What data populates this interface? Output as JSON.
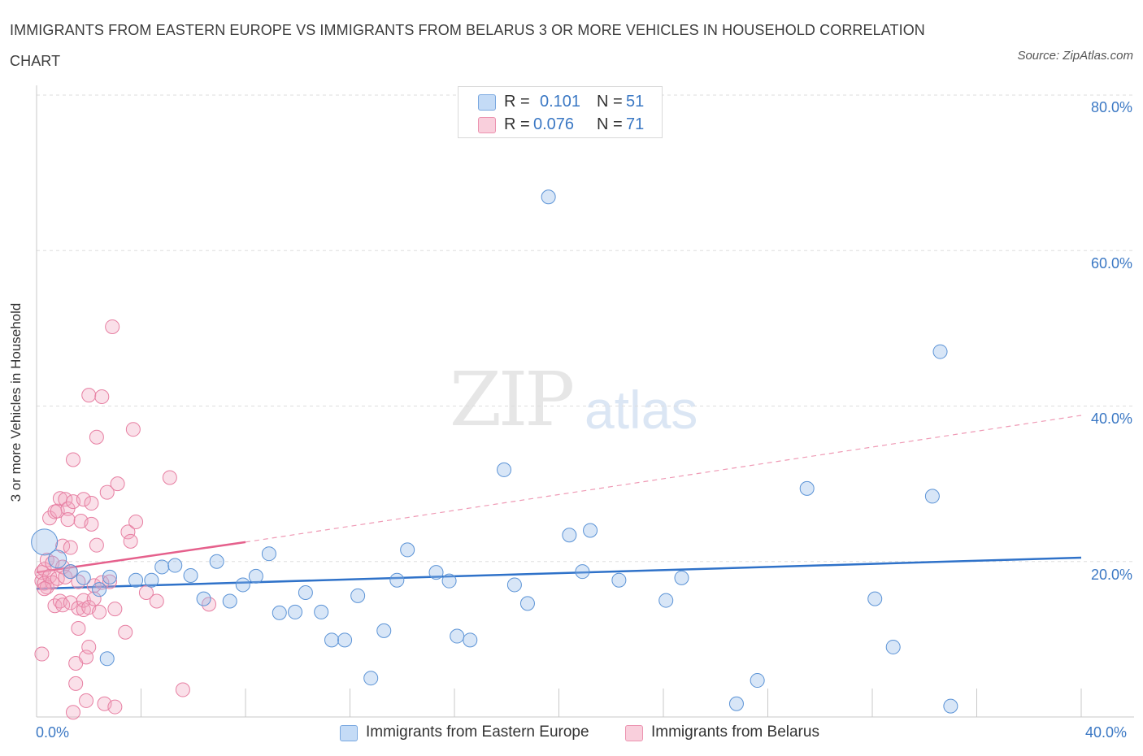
{
  "title": "IMMIGRANTS FROM EASTERN EUROPE VS IMMIGRANTS FROM BELARUS 3 OR MORE VEHICLES IN HOUSEHOLD CORRELATION CHART",
  "source": "Source: ZipAtlas.com",
  "watermark": {
    "zip": "ZIP",
    "atlas": "atlas"
  },
  "legend": {
    "rows": [
      {
        "r_label": "R =",
        "r_value": "0.101",
        "n_label": "N =",
        "n_value": "51",
        "color": "#8fb8e8"
      },
      {
        "r_label": "R =",
        "r_value": "0.076",
        "n_label": "N =",
        "n_value": "71",
        "color": "#f2a7bf"
      }
    ]
  },
  "bottom_legend": [
    {
      "label": "Immigrants from Eastern Europe",
      "color": "#8fb8e8"
    },
    {
      "label": "Immigrants from Belarus",
      "color": "#f2a7bf"
    }
  ],
  "chart_data": {
    "type": "scatter",
    "title": "IMMIGRANTS FROM EASTERN EUROPE VS IMMIGRANTS FROM BELARUS 3 OR MORE VEHICLES IN HOUSEHOLD CORRELATION CHART",
    "xlabel": "",
    "ylabel": "3 or more Vehicles in Household",
    "xlim": [
      0,
      40
    ],
    "ylim": [
      0,
      80
    ],
    "x_tick_labels": [
      "0.0%",
      "40.0%"
    ],
    "y_tick_labels": [
      "20.0%",
      "40.0%",
      "60.0%",
      "80.0%"
    ],
    "y_ticks": [
      20,
      40,
      60,
      80
    ],
    "grid": true,
    "legend_position": "top-center",
    "series": [
      {
        "name": "Immigrants from Eastern Europe",
        "color": "#8fb8e8",
        "edge": "#5b93d6",
        "trend": {
          "x": [
            0,
            40
          ],
          "y": [
            16.5,
            20.5
          ],
          "color": "#2f72c9",
          "dashed": false
        },
        "points": [
          [
            0.3,
            22.5
          ],
          [
            0.8,
            20.3
          ],
          [
            1.3,
            18.7
          ],
          [
            1.8,
            17.9
          ],
          [
            2.4,
            16.4
          ],
          [
            2.7,
            7.5
          ],
          [
            2.8,
            18.0
          ],
          [
            3.8,
            17.6
          ],
          [
            4.4,
            17.6
          ],
          [
            4.8,
            19.3
          ],
          [
            5.3,
            19.5
          ],
          [
            5.9,
            18.2
          ],
          [
            6.4,
            15.2
          ],
          [
            6.9,
            20.0
          ],
          [
            7.4,
            14.9
          ],
          [
            7.9,
            17.0
          ],
          [
            8.4,
            18.1
          ],
          [
            8.9,
            21.0
          ],
          [
            9.3,
            13.4
          ],
          [
            9.9,
            13.5
          ],
          [
            10.3,
            16.0
          ],
          [
            10.9,
            13.5
          ],
          [
            11.3,
            9.9
          ],
          [
            11.8,
            9.9
          ],
          [
            12.3,
            15.6
          ],
          [
            12.8,
            5.0
          ],
          [
            13.3,
            11.1
          ],
          [
            13.8,
            17.6
          ],
          [
            14.2,
            21.5
          ],
          [
            15.3,
            18.6
          ],
          [
            15.8,
            17.5
          ],
          [
            16.1,
            10.4
          ],
          [
            16.6,
            9.9
          ],
          [
            17.9,
            31.8
          ],
          [
            18.3,
            17.0
          ],
          [
            18.8,
            14.6
          ],
          [
            19.6,
            66.9
          ],
          [
            20.4,
            23.4
          ],
          [
            20.9,
            18.7
          ],
          [
            21.2,
            24.0
          ],
          [
            22.3,
            17.6
          ],
          [
            24.1,
            15.0
          ],
          [
            24.7,
            17.9
          ],
          [
            26.8,
            1.7
          ],
          [
            27.6,
            4.7
          ],
          [
            29.5,
            29.4
          ],
          [
            32.1,
            15.2
          ],
          [
            32.8,
            9.0
          ],
          [
            34.3,
            28.4
          ],
          [
            34.6,
            47.0
          ],
          [
            35.0,
            1.4
          ]
        ]
      },
      {
        "name": "Immigrants from Belarus",
        "color": "#f2a7bf",
        "edge": "#e77fa2",
        "trend_solid": {
          "x": [
            0,
            8
          ],
          "y": [
            18.6,
            22.5
          ],
          "color": "#e5608c"
        },
        "trend_dashed": {
          "x": [
            8,
            40
          ],
          "y": [
            22.5,
            38.8
          ],
          "color": "#ef9ab5"
        },
        "points": [
          [
            0.2,
            17.5
          ],
          [
            0.2,
            18.6
          ],
          [
            0.2,
            8.1
          ],
          [
            0.3,
            19.0
          ],
          [
            0.3,
            17.2
          ],
          [
            0.4,
            16.7
          ],
          [
            0.4,
            20.2
          ],
          [
            0.5,
            18.1
          ],
          [
            0.5,
            25.6
          ],
          [
            0.6,
            17.3
          ],
          [
            0.6,
            19.8
          ],
          [
            0.7,
            26.4
          ],
          [
            0.7,
            14.3
          ],
          [
            0.8,
            26.5
          ],
          [
            0.8,
            17.8
          ],
          [
            0.9,
            28.1
          ],
          [
            0.9,
            14.9
          ],
          [
            1.0,
            19.3
          ],
          [
            1.0,
            14.4
          ],
          [
            1.0,
            22.0
          ],
          [
            1.1,
            28.0
          ],
          [
            1.1,
            18.0
          ],
          [
            1.2,
            26.8
          ],
          [
            1.2,
            25.4
          ],
          [
            1.3,
            21.8
          ],
          [
            1.3,
            18.7
          ],
          [
            1.3,
            14.7
          ],
          [
            1.4,
            0.6
          ],
          [
            1.4,
            27.7
          ],
          [
            1.4,
            33.1
          ],
          [
            1.5,
            4.3
          ],
          [
            1.5,
            6.9
          ],
          [
            1.6,
            11.4
          ],
          [
            1.6,
            17.4
          ],
          [
            1.6,
            14.0
          ],
          [
            1.7,
            25.2
          ],
          [
            1.8,
            28.0
          ],
          [
            1.8,
            13.8
          ],
          [
            1.8,
            15.0
          ],
          [
            1.9,
            7.7
          ],
          [
            1.9,
            2.1
          ],
          [
            2.0,
            14.1
          ],
          [
            2.0,
            9.0
          ],
          [
            2.0,
            41.4
          ],
          [
            2.1,
            27.5
          ],
          [
            2.1,
            24.8
          ],
          [
            2.2,
            16.9
          ],
          [
            2.2,
            15.2
          ],
          [
            2.3,
            36.0
          ],
          [
            2.3,
            22.1
          ],
          [
            2.4,
            13.5
          ],
          [
            2.5,
            17.3
          ],
          [
            2.5,
            41.2
          ],
          [
            2.6,
            1.7
          ],
          [
            2.7,
            28.9
          ],
          [
            2.8,
            17.4
          ],
          [
            2.9,
            50.2
          ],
          [
            3.0,
            1.3
          ],
          [
            3.0,
            13.9
          ],
          [
            3.1,
            30.0
          ],
          [
            3.4,
            10.9
          ],
          [
            3.5,
            23.8
          ],
          [
            3.6,
            22.6
          ],
          [
            3.7,
            37.0
          ],
          [
            3.8,
            25.1
          ],
          [
            4.2,
            16.0
          ],
          [
            4.6,
            14.9
          ],
          [
            5.1,
            30.8
          ],
          [
            5.6,
            3.5
          ],
          [
            6.6,
            14.5
          ],
          [
            0.3,
            16.5
          ]
        ]
      }
    ]
  }
}
